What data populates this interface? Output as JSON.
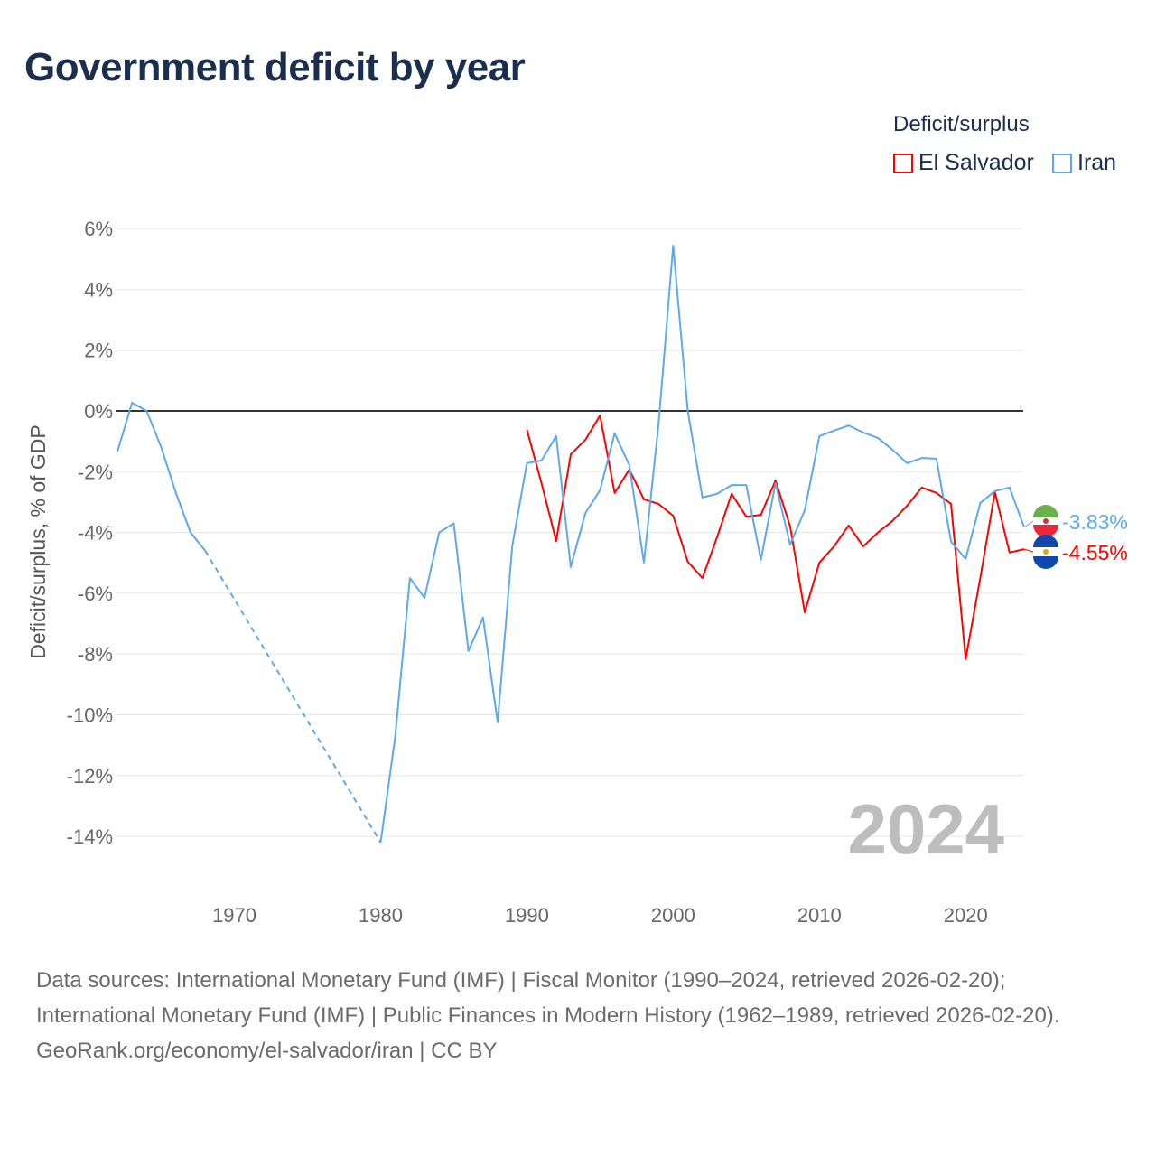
{
  "title": "Government deficit by year",
  "legend": {
    "title": "Deficit/surplus",
    "items": [
      {
        "name": "El Salvador",
        "color": "#ff0000"
      },
      {
        "name": "Iran",
        "color": "#5ea8ec"
      }
    ]
  },
  "chart_data": {
    "type": "line",
    "title": "Government deficit by year",
    "ylabel": "Deficit/surplus, % of GDP",
    "xlabel": "",
    "ylim": [
      -14,
      6
    ],
    "xlim": [
      1962,
      2024
    ],
    "yticks": [
      "6%",
      "4%",
      "2%",
      "0%",
      "-2%",
      "-4%",
      "-6%",
      "-8%",
      "-10%",
      "-12%",
      "-14%"
    ],
    "ytick_values": [
      6,
      4,
      2,
      0,
      -2,
      -4,
      -6,
      -8,
      -10,
      -12,
      -14
    ],
    "xticks": [
      "1970",
      "1980",
      "1990",
      "2000",
      "2010",
      "2020"
    ],
    "xtick_values": [
      1970,
      1980,
      1990,
      2000,
      2010,
      2020
    ],
    "year_watermark": "2024",
    "grid": true,
    "legend_position": "top-right",
    "series": [
      {
        "name": "El Salvador",
        "color": "#ff0000",
        "end_label": "-4.55%",
        "x": [
          1990,
          1991,
          1992,
          1993,
          1994,
          1995,
          1996,
          1997,
          1998,
          1999,
          2000,
          2001,
          2002,
          2003,
          2004,
          2005,
          2006,
          2007,
          2008,
          2009,
          2010,
          2011,
          2012,
          2013,
          2014,
          2015,
          2016,
          2017,
          2018,
          2019,
          2020,
          2021,
          2022,
          2023,
          2024
        ],
        "y": [
          -0.62,
          -2.38,
          -4.28,
          -1.43,
          -0.95,
          -0.15,
          -2.7,
          -1.93,
          -2.91,
          -3.06,
          -3.45,
          -4.96,
          -5.5,
          -4.16,
          -2.73,
          -3.48,
          -3.42,
          -2.29,
          -3.8,
          -6.63,
          -4.99,
          -4.46,
          -3.77,
          -4.46,
          -4.0,
          -3.62,
          -3.12,
          -2.52,
          -2.7,
          -3.06,
          -8.17,
          -5.5,
          -2.67,
          -4.66,
          -4.55
        ]
      },
      {
        "name": "Iran",
        "color": "#5ea8ec",
        "end_label": "-3.83%",
        "x": [
          1962,
          1963,
          1964,
          1965,
          1966,
          1967,
          1968,
          1980,
          1981,
          1982,
          1983,
          1984,
          1985,
          1986,
          1987,
          1988,
          1989,
          1990,
          1991,
          1992,
          1993,
          1994,
          1995,
          1996,
          1997,
          1998,
          1999,
          2000,
          2001,
          2002,
          2003,
          2004,
          2005,
          2006,
          2007,
          2008,
          2009,
          2010,
          2011,
          2012,
          2013,
          2014,
          2015,
          2016,
          2017,
          2018,
          2019,
          2020,
          2021,
          2022,
          2023,
          2024
        ],
        "y": [
          -1.34,
          0.27,
          0,
          -1.2,
          -2.7,
          -4.0,
          -4.6,
          -14.2,
          -10.7,
          -5.5,
          -6.15,
          -4.0,
          -3.7,
          -7.9,
          -6.8,
          -10.25,
          -4.45,
          -1.72,
          -1.63,
          -0.83,
          -5.14,
          -3.36,
          -2.61,
          -0.74,
          -1.78,
          -4.99,
          -0.45,
          5.44,
          0,
          -2.85,
          -2.73,
          -2.44,
          -2.44,
          -4.9,
          -2.38,
          -4.4,
          -3.27,
          -0.83,
          -0.65,
          -0.48,
          -0.71,
          -0.89,
          -1.28,
          -1.72,
          -1.55,
          -1.57,
          -4.3,
          -4.87,
          -3.03,
          -2.64,
          -2.52,
          -3.83
        ]
      }
    ]
  },
  "footer": {
    "sources": "Data sources: International Monetary Fund (IMF) | Fiscal Monitor (1990–2024, retrieved 2026-02-20); International Monetary Fund (IMF) | Public Finances in Modern History (1962–1989, retrieved 2026-02-20).",
    "credit": "GeoRank.org/economy/el-salvador/iran | CC BY"
  }
}
